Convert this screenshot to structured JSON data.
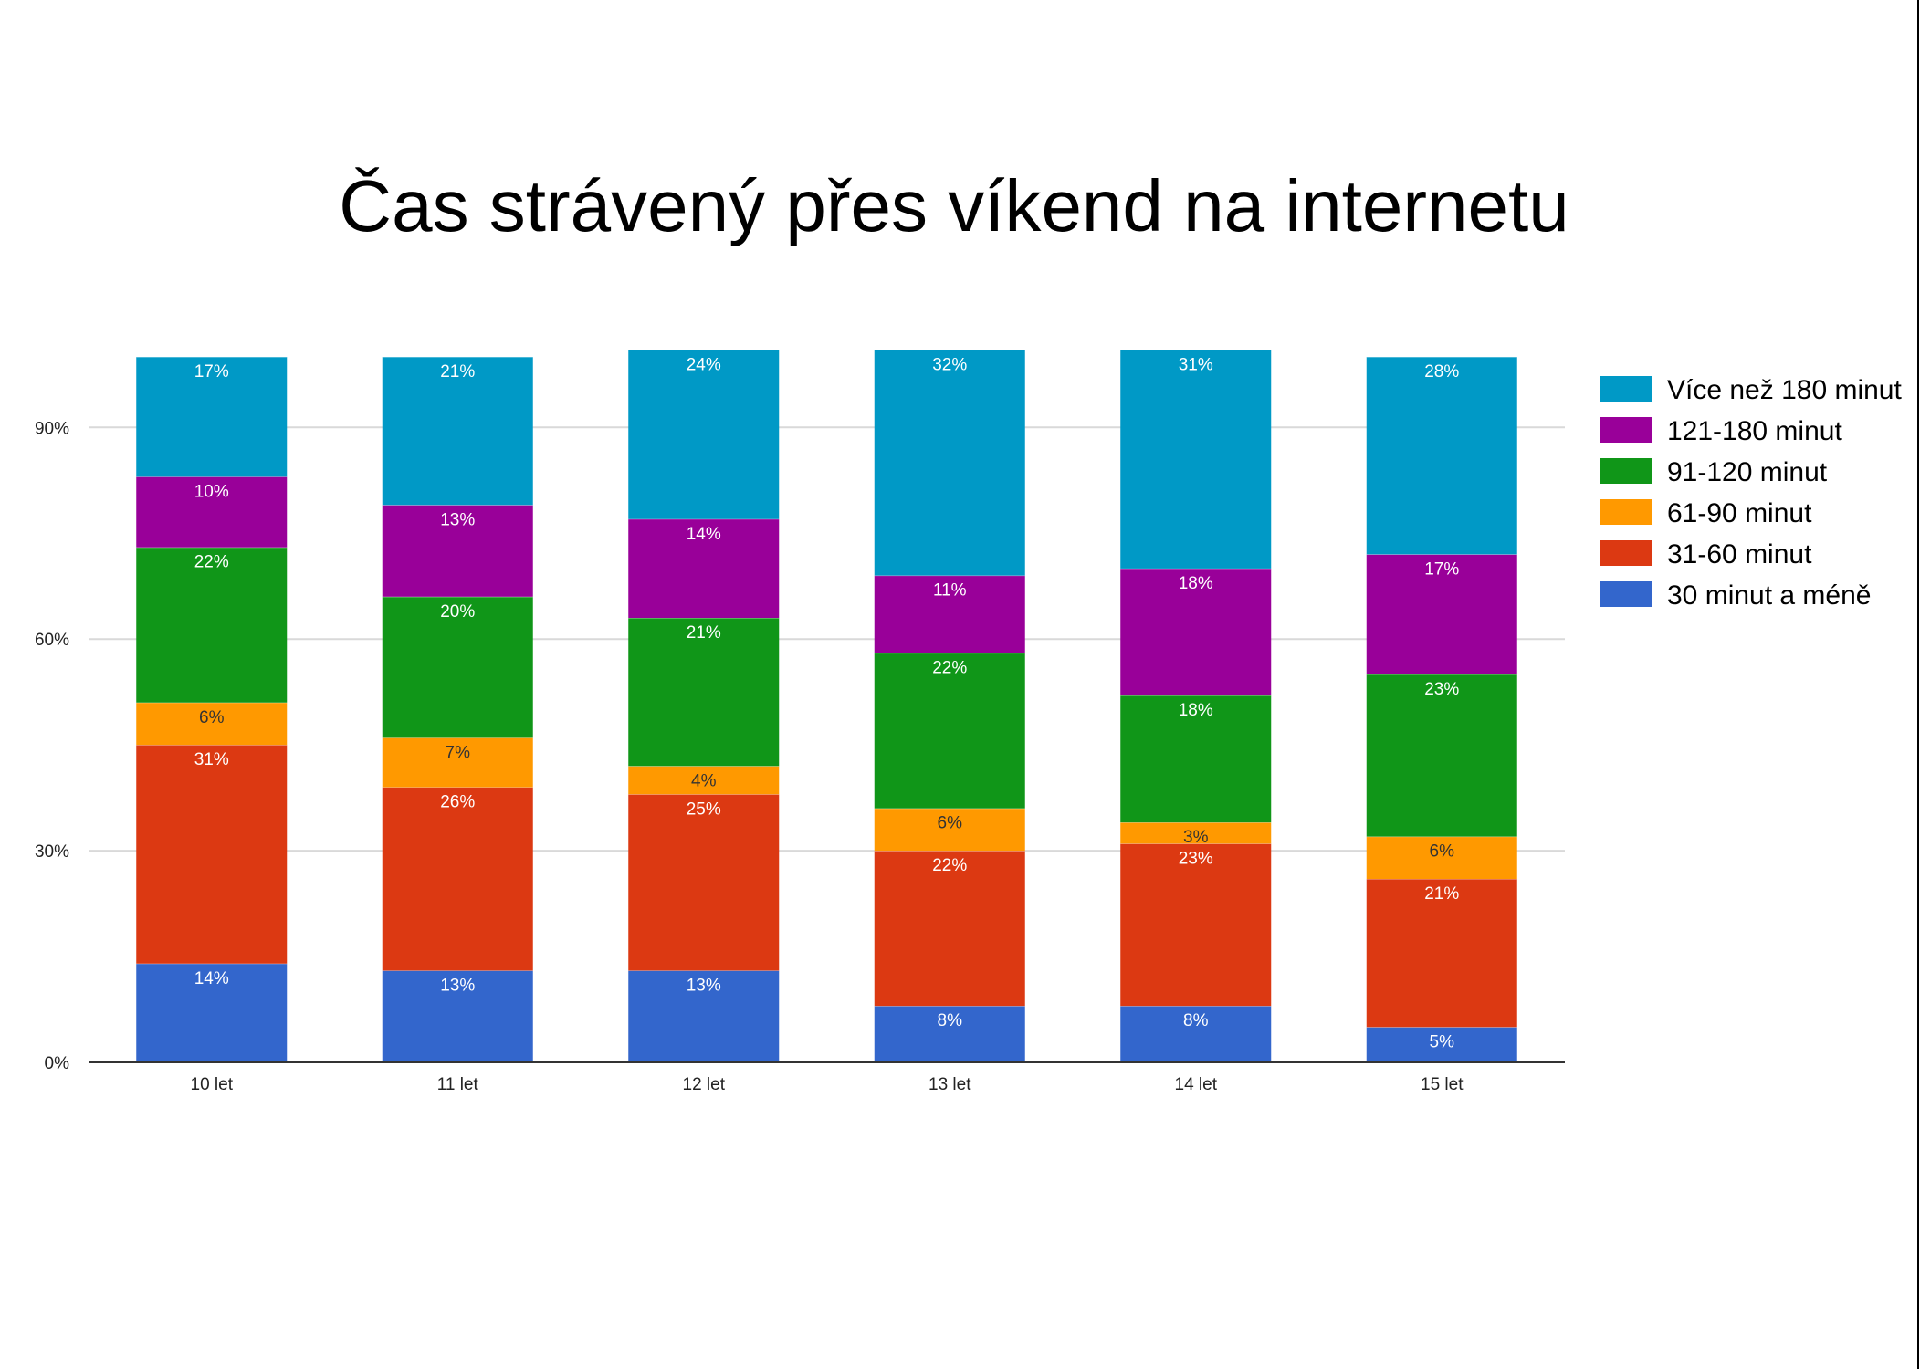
{
  "chart_data": {
    "type": "bar",
    "stacked": true,
    "title": "Čas strávený přes víkend na internetu",
    "categories": [
      "10 let",
      "11 let",
      "12 let",
      "13 let",
      "14 let",
      "15 let"
    ],
    "y_ticks": [
      "0%",
      "30%",
      "60%",
      "90%"
    ],
    "ylim": [
      0,
      100
    ],
    "grid": true,
    "legend_position": "right",
    "series": [
      {
        "name": "30 minut a méně",
        "color": "#3366cc",
        "values": [
          14,
          13,
          13,
          8,
          8,
          5
        ],
        "labels": [
          "14%",
          "13%",
          "13%",
          "8%",
          "8%",
          "5%"
        ]
      },
      {
        "name": "31-60 minut",
        "color": "#dc3912",
        "values": [
          31,
          26,
          25,
          22,
          23,
          21
        ],
        "labels": [
          "31%",
          "26%",
          "25%",
          "22%",
          "23%",
          "21%"
        ]
      },
      {
        "name": "61-90 minut",
        "color": "#ff9900",
        "values": [
          6,
          7,
          4,
          6,
          3,
          6
        ],
        "labels": [
          "6%",
          "7%",
          "4%",
          "6%",
          "3%",
          "6%"
        ]
      },
      {
        "name": "91-120 minut",
        "color": "#109618",
        "values": [
          22,
          20,
          21,
          22,
          18,
          23
        ],
        "labels": [
          "22%",
          "20%",
          "21%",
          "22%",
          "18%",
          "23%"
        ]
      },
      {
        "name": "121-180 minut",
        "color": "#990099",
        "values": [
          10,
          13,
          14,
          11,
          18,
          17
        ],
        "labels": [
          "10%",
          "13%",
          "14%",
          "11%",
          "18%",
          "17%"
        ]
      },
      {
        "name": "Více než 180 minut",
        "color": "#0099c6",
        "values": [
          17,
          21,
          24,
          32,
          31,
          28
        ],
        "labels": [
          "17%",
          "21%",
          "24%",
          "32%",
          "31%",
          "28%"
        ]
      }
    ]
  }
}
